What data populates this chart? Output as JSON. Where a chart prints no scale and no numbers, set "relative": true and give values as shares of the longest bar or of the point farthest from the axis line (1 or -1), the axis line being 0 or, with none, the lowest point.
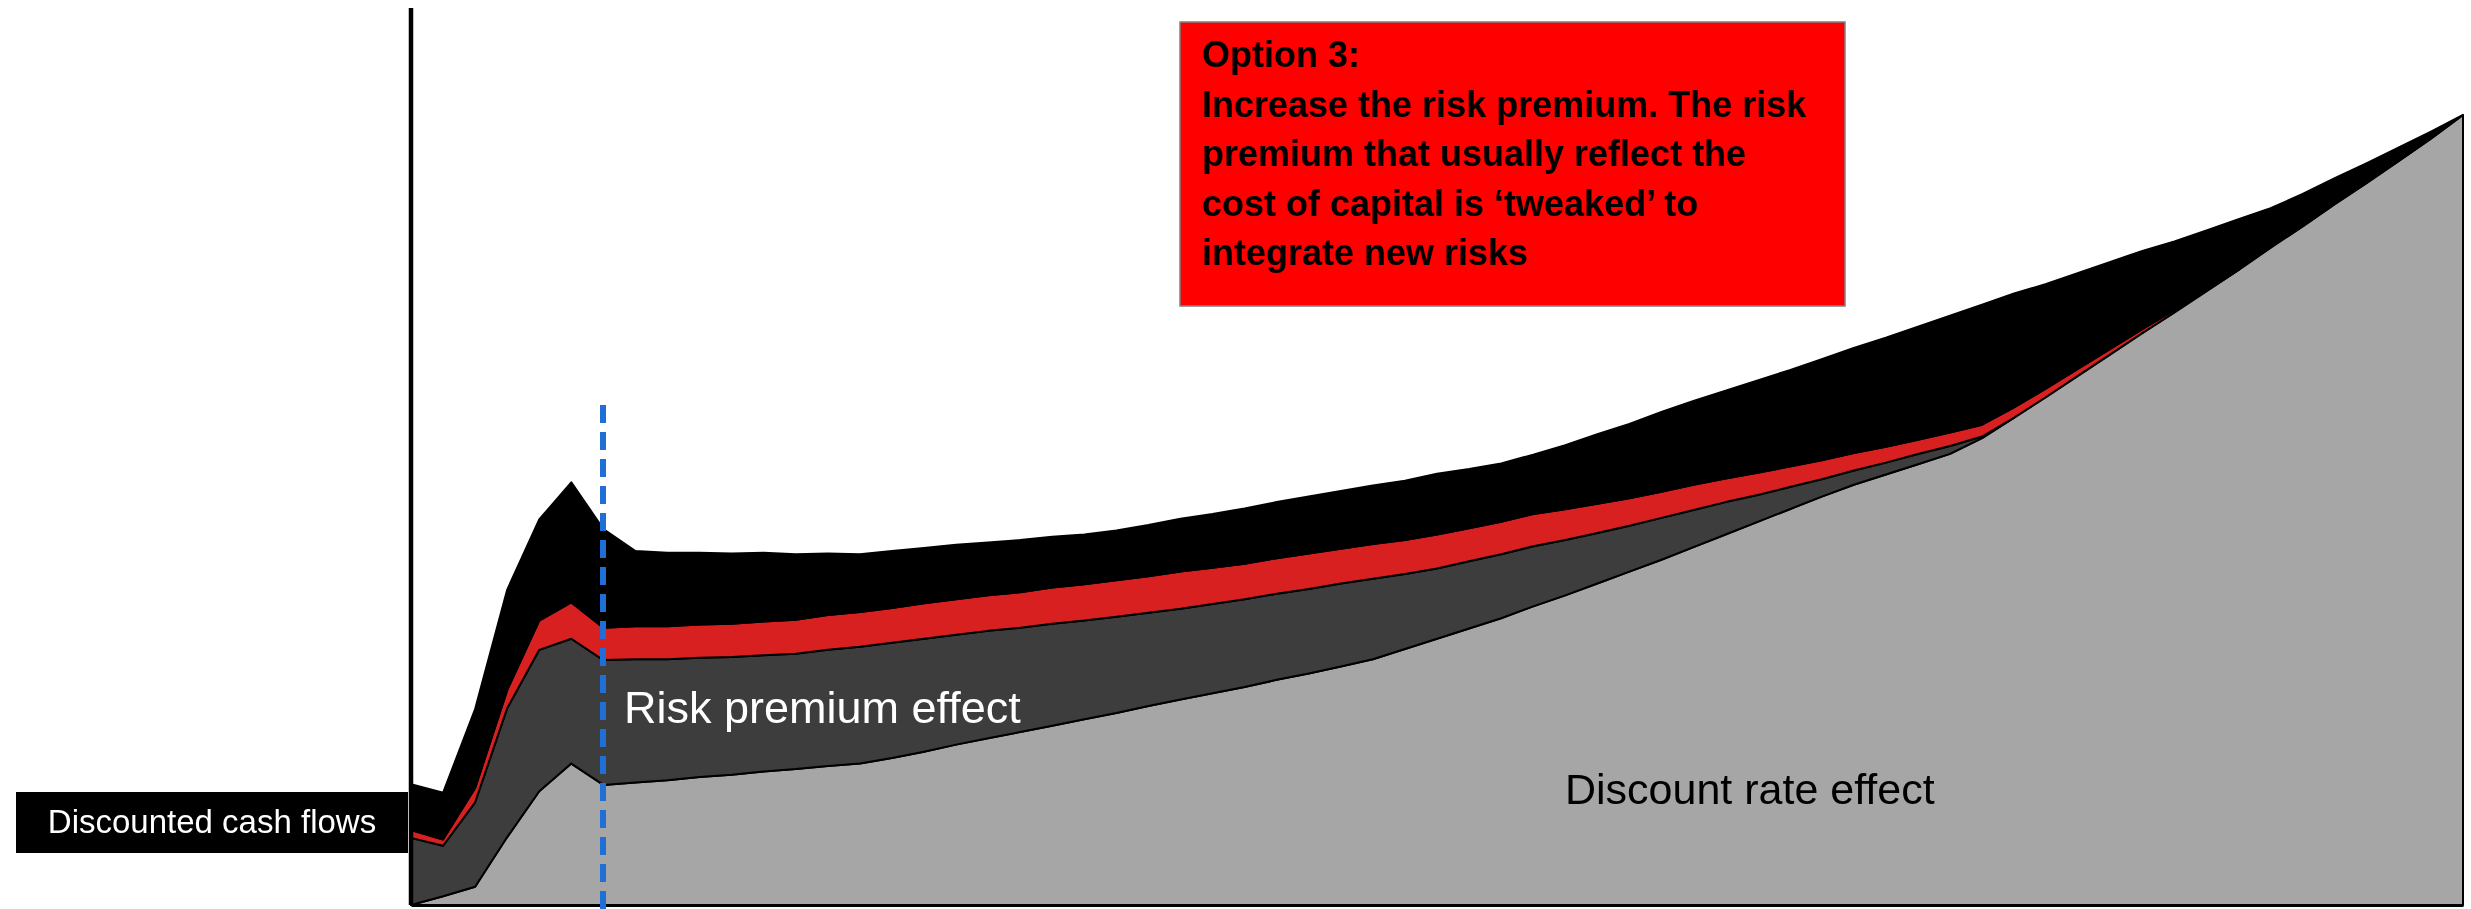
{
  "chart_data": {
    "type": "area",
    "stacked": true,
    "relative": true,
    "categories": [
      null,
      null,
      null,
      null,
      null,
      null,
      null,
      null,
      null,
      null,
      null,
      null,
      null,
      null,
      null,
      null,
      null,
      null,
      null,
      null,
      null,
      null,
      null,
      null,
      null,
      null,
      null,
      null,
      null,
      null,
      null,
      null,
      null,
      null,
      null,
      null,
      null,
      null,
      null,
      null,
      null,
      null,
      null,
      null,
      null,
      null,
      null,
      null,
      null,
      null,
      null,
      null,
      null,
      null,
      null,
      null,
      null,
      null,
      null,
      null,
      null,
      null,
      null,
      null,
      null
    ],
    "series": [
      {
        "name": "Discount rate effect",
        "color": "#a6a6a6",
        "values": [
          0,
          0.011,
          0.023,
          0.086,
          0.144,
          0.179,
          0.152,
          0.155,
          0.158,
          0.162,
          0.165,
          0.169,
          0.172,
          0.176,
          0.179,
          0.186,
          0.194,
          0.203,
          0.211,
          0.219,
          0.227,
          0.235,
          0.243,
          0.252,
          0.26,
          0.268,
          0.276,
          0.285,
          0.293,
          0.302,
          0.311,
          0.324,
          0.337,
          0.35,
          0.363,
          0.378,
          0.392,
          0.407,
          0.422,
          0.437,
          0.453,
          0.469,
          0.485,
          0.501,
          0.517,
          0.532,
          0.545,
          0.558,
          0.571,
          0.591,
          0.617,
          0.643,
          0.67,
          0.697,
          0.724,
          0.75,
          0.777,
          0.804,
          0.832,
          0.859,
          0.887,
          0.914,
          0.942,
          0.97,
          1
        ]
      },
      {
        "name": "Risk premium effect",
        "color": "#3d3d3d",
        "values": [
          0.085,
          0.064,
          0.107,
          0.163,
          0.179,
          0.158,
          0.158,
          0.156,
          0.153,
          0.151,
          0.149,
          0.147,
          0.146,
          0.147,
          0.148,
          0.146,
          0.143,
          0.139,
          0.136,
          0.132,
          0.129,
          0.125,
          0.122,
          0.118,
          0.115,
          0.113,
          0.111,
          0.109,
          0.107,
          0.105,
          0.102,
          0.095,
          0.089,
          0.085,
          0.081,
          0.076,
          0.07,
          0.064,
          0.058,
          0.053,
          0.047,
          0.041,
          0.034,
          0.028,
          0.022,
          0.018,
          0.015,
          0.013,
          0.01,
          0.002,
          0,
          null,
          null,
          null,
          null,
          null,
          null,
          null,
          null,
          null,
          null,
          null,
          null,
          null,
          null
        ]
      },
      {
        "color": "#d92020",
        "values": [
          0.01,
          0.008,
          0.018,
          0.023,
          0.037,
          0.046,
          0.041,
          0.042,
          0.042,
          0.042,
          0.042,
          0.043,
          0.043,
          0.044,
          0.044,
          0.044,
          0.045,
          0.045,
          0.045,
          0.045,
          0.046,
          0.046,
          0.046,
          0.046,
          0.047,
          0.046,
          0.045,
          0.045,
          0.045,
          0.044,
          0.044,
          0.043,
          0.043,
          0.042,
          0.041,
          0.041,
          0.039,
          0.037,
          0.035,
          0.033,
          0.032,
          0.03,
          0.028,
          0.026,
          0.024,
          0.022,
          0.02,
          0.018,
          0.017,
          0.015,
          0.013,
          0.011,
          0.009,
          0.007,
          0.005,
          0.003,
          0.001,
          0,
          null,
          null,
          null,
          null,
          null,
          null,
          null
        ]
      },
      {
        "name": "Discounted cash flows",
        "color": "#000000",
        "values": [
          0.058,
          0.059,
          0.1,
          0.127,
          0.128,
          0.152,
          0.125,
          0.095,
          0.093,
          0.091,
          0.089,
          0.087,
          0.083,
          0.078,
          0.073,
          0.072,
          0.07,
          0.069,
          0.067,
          0.066,
          0.064,
          0.063,
          0.063,
          0.065,
          0.067,
          0.068,
          0.07,
          0.071,
          0.072,
          0.073,
          0.074,
          0.075,
          0.077,
          0.075,
          0.074,
          0.075,
          0.081,
          0.088,
          0.094,
          0.101,
          0.106,
          0.111,
          0.117,
          0.122,
          0.128,
          0.133,
          0.138,
          0.143,
          0.148,
          0.152,
          0.144,
          0.132,
          0.121,
          0.11,
          0.099,
          0.087,
          0.076,
          0.064,
          0.05,
          0.041,
          0.033,
          0.025,
          0.017,
          0.009,
          0
        ]
      }
    ],
    "annotations": [
      "Option 3:\nIncrease the risk premium. The risk premium that usually reflect the cost of capital is ‘tweaked’ to integrate new risks"
    ]
  }
}
